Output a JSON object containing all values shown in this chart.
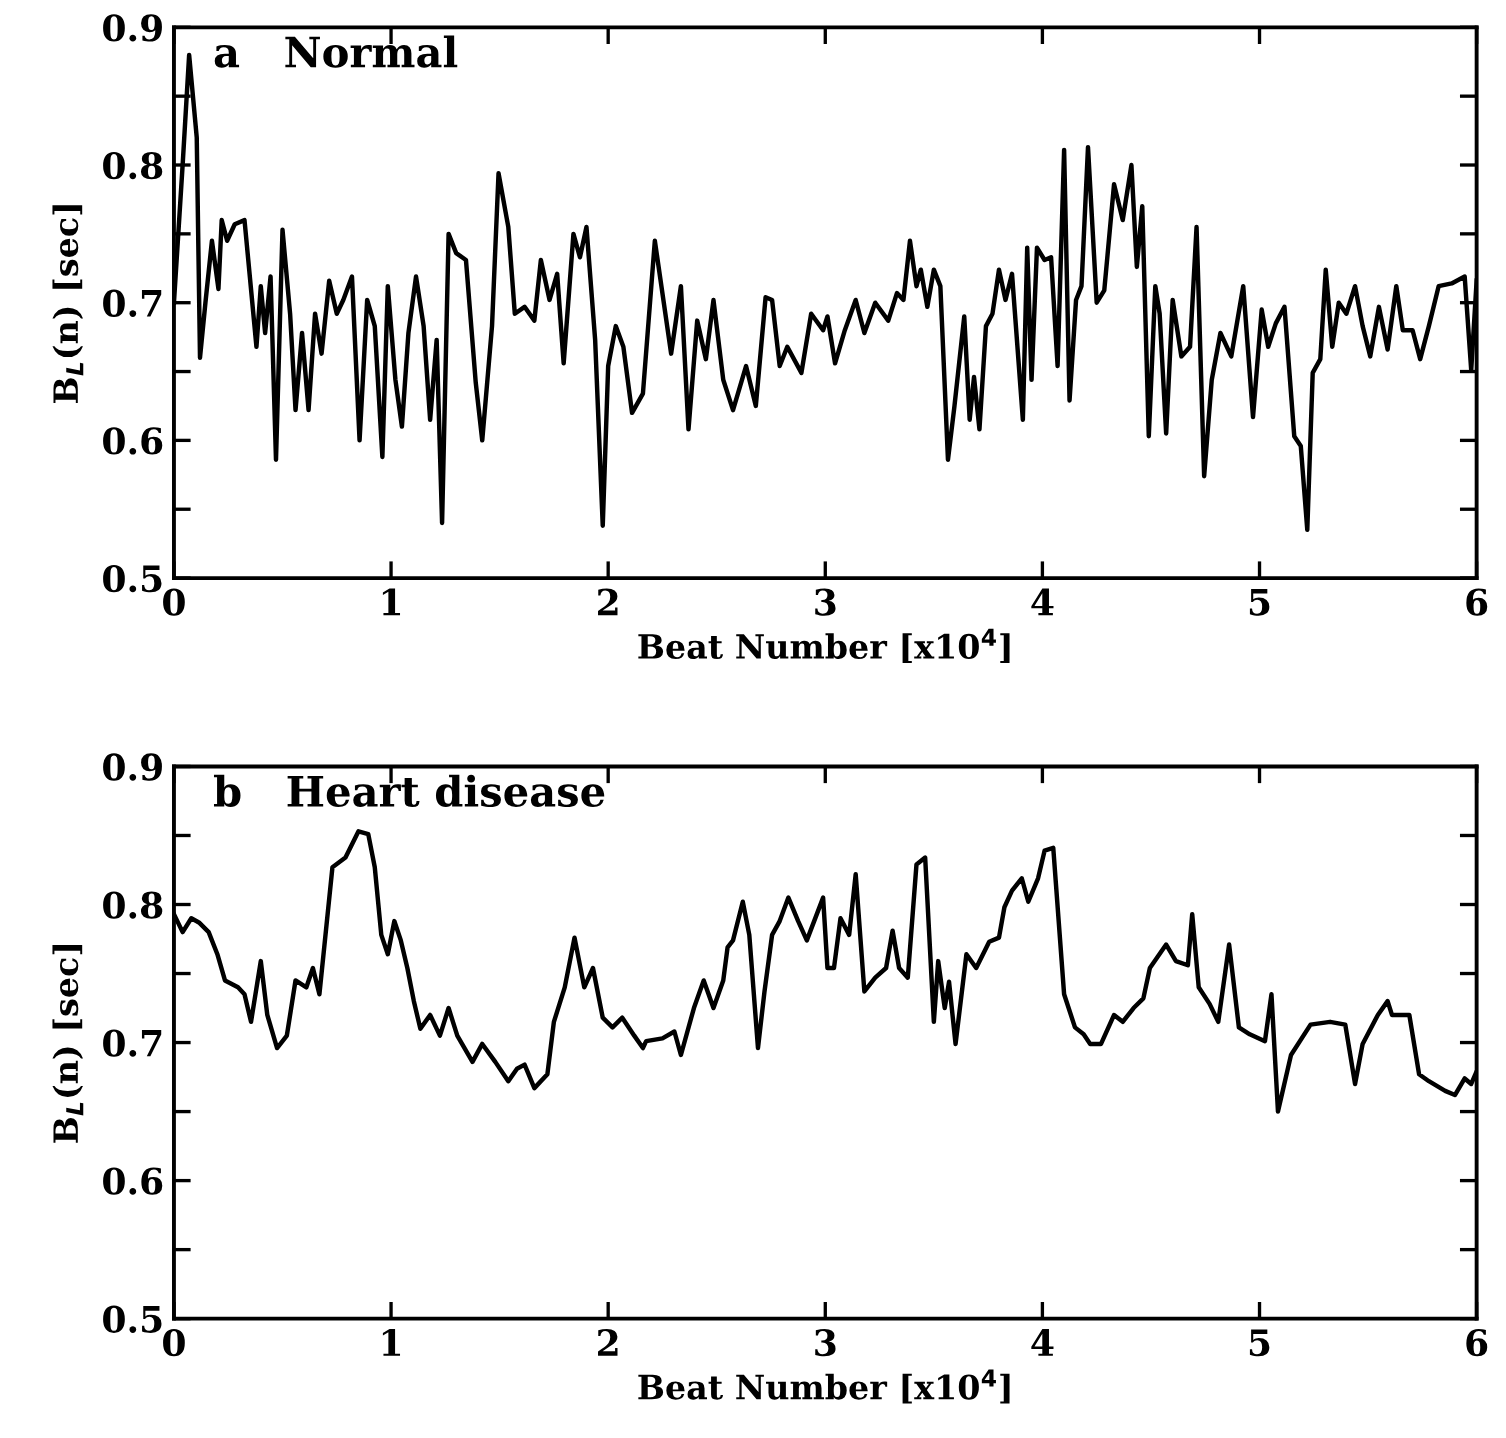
{
  "chart_data": [
    {
      "type": "line",
      "title": "a   Normal",
      "xlabel": "Beat Number [x10$^{4}$]",
      "ylabel": "B$_{L}$(n) [sec]",
      "xlim": [
        0,
        6
      ],
      "ylim": [
        0.5,
        0.9
      ],
      "xticks": [
        0,
        1,
        2,
        3,
        4,
        5,
        6
      ],
      "yticks": [
        0.5,
        {
          "value": 0.55,
          "label": null
        },
        0.6,
        {
          "value": 0.65,
          "label": null
        },
        0.7,
        {
          "value": 0.75,
          "label": null
        },
        0.8,
        {
          "value": 0.85,
          "label": null
        },
        0.9
      ],
      "series": [
        {
          "color": "#000000",
          "x": [
            0,
            0.02,
            0.04,
            0.07,
            0.105,
            0.12,
            0.145,
            0.175,
            0.205,
            0.22,
            0.245,
            0.28,
            0.325,
            0.38,
            0.4,
            0.42,
            0.445,
            0.47,
            0.5,
            0.535,
            0.56,
            0.59,
            0.62,
            0.65,
            0.68,
            0.715,
            0.75,
            0.78,
            0.82,
            0.855,
            0.89,
            0.925,
            0.96,
            0.985,
            1.02,
            1.05,
            1.08,
            1.115,
            1.15,
            1.18,
            1.21,
            1.235,
            1.265,
            1.3,
            1.345,
            1.39,
            1.42,
            1.465,
            1.495,
            1.54,
            1.57,
            1.615,
            1.66,
            1.69,
            1.73,
            1.765,
            1.795,
            1.84,
            1.87,
            1.9,
            1.94,
            1.975,
            2.0,
            2.035,
            2.07,
            2.11,
            2.16,
            2.215,
            2.29,
            2.335,
            2.37,
            2.41,
            2.45,
            2.485,
            2.53,
            2.575,
            2.635,
            2.68,
            2.725,
            2.755,
            2.79,
            2.825,
            2.89,
            2.935,
            2.99,
            3.01,
            3.045,
            3.09,
            3.14,
            3.18,
            3.23,
            3.29,
            3.33,
            3.36,
            3.39,
            3.42,
            3.44,
            3.47,
            3.5,
            3.53,
            3.565,
            3.595,
            3.64,
            3.665,
            3.685,
            3.71,
            3.74,
            3.77,
            3.8,
            3.83,
            3.86,
            3.91,
            3.93,
            3.95,
            3.975,
            4.01,
            4.04,
            4.07,
            4.1,
            4.125,
            4.155,
            4.18,
            4.21,
            4.25,
            4.285,
            4.33,
            4.37,
            4.41,
            4.435,
            4.46,
            4.49,
            4.52,
            4.54,
            4.57,
            4.6,
            4.64,
            4.68,
            4.71,
            4.745,
            4.78,
            4.82,
            4.87,
            4.925,
            4.97,
            5.01,
            5.04,
            5.075,
            5.115,
            5.16,
            5.19,
            5.22,
            5.245,
            5.28,
            5.305,
            5.335,
            5.365,
            5.4,
            5.44,
            5.475,
            5.51,
            5.55,
            5.59,
            5.63,
            5.66,
            5.705,
            5.74,
            5.78,
            5.825,
            5.885,
            5.945,
            5.975,
            6.0
          ],
          "values": [
            0.7,
            0.75,
            0.8,
            0.88,
            0.82,
            0.66,
            0.7,
            0.745,
            0.71,
            0.76,
            0.745,
            0.757,
            0.76,
            0.668,
            0.712,
            0.678,
            0.719,
            0.586,
            0.753,
            0.692,
            0.622,
            0.678,
            0.622,
            0.692,
            0.663,
            0.716,
            0.692,
            0.702,
            0.719,
            0.6,
            0.702,
            0.683,
            0.588,
            0.712,
            0.644,
            0.61,
            0.678,
            0.719,
            0.683,
            0.615,
            0.673,
            0.54,
            0.75,
            0.736,
            0.731,
            0.642,
            0.6,
            0.683,
            0.794,
            0.755,
            0.692,
            0.697,
            0.687,
            0.731,
            0.702,
            0.721,
            0.656,
            0.75,
            0.733,
            0.755,
            0.673,
            0.538,
            0.654,
            0.683,
            0.668,
            0.62,
            0.634,
            0.745,
            0.663,
            0.712,
            0.608,
            0.687,
            0.659,
            0.702,
            0.644,
            0.622,
            0.654,
            0.625,
            0.704,
            0.702,
            0.654,
            0.668,
            0.649,
            0.692,
            0.68,
            0.69,
            0.656,
            0.68,
            0.702,
            0.678,
            0.7,
            0.687,
            0.707,
            0.702,
            0.745,
            0.712,
            0.724,
            0.697,
            0.724,
            0.712,
            0.586,
            0.625,
            0.69,
            0.615,
            0.646,
            0.608,
            0.683,
            0.692,
            0.724,
            0.702,
            0.721,
            0.615,
            0.74,
            0.644,
            0.74,
            0.731,
            0.733,
            0.654,
            0.811,
            0.629,
            0.702,
            0.712,
            0.813,
            0.7,
            0.709,
            0.786,
            0.76,
            0.8,
            0.726,
            0.77,
            0.603,
            0.712,
            0.692,
            0.605,
            0.702,
            0.661,
            0.668,
            0.755,
            0.574,
            0.644,
            0.678,
            0.661,
            0.712,
            0.617,
            0.695,
            0.668,
            0.685,
            0.697,
            0.603,
            0.596,
            0.535,
            0.649,
            0.659,
            0.724,
            0.668,
            0.7,
            0.692,
            0.712,
            0.683,
            0.661,
            0.697,
            0.666,
            0.712,
            0.68,
            0.68,
            0.659,
            0.683,
            0.712,
            0.714,
            0.719,
            0.651,
            0.716
          ]
        }
      ]
    },
    {
      "type": "line",
      "title": "b   Heart disease",
      "xlabel": "Beat Number [x10$^{4}$]",
      "ylabel": "B$_{L}$(n) [sec]",
      "xlim": [
        0,
        6
      ],
      "ylim": [
        0.5,
        0.9
      ],
      "xticks": [
        0,
        1,
        2,
        3,
        4,
        5,
        6
      ],
      "yticks": [
        0.5,
        {
          "value": 0.55,
          "label": null
        },
        0.6,
        {
          "value": 0.65,
          "label": null
        },
        0.7,
        {
          "value": 0.75,
          "label": null
        },
        0.8,
        {
          "value": 0.85,
          "label": null
        },
        0.9
      ],
      "series": [
        {
          "color": "#000000",
          "x": [
            0,
            0.04,
            0.08,
            0.115,
            0.16,
            0.2,
            0.235,
            0.295,
            0.325,
            0.355,
            0.4,
            0.43,
            0.475,
            0.52,
            0.56,
            0.61,
            0.64,
            0.67,
            0.73,
            0.79,
            0.85,
            0.895,
            0.925,
            0.955,
            0.985,
            1.015,
            1.045,
            1.075,
            1.105,
            1.135,
            1.18,
            1.225,
            1.265,
            1.305,
            1.375,
            1.42,
            1.48,
            1.54,
            1.58,
            1.615,
            1.66,
            1.72,
            1.75,
            1.8,
            1.845,
            1.89,
            1.93,
            1.975,
            2.02,
            2.065,
            2.12,
            2.16,
            2.175,
            2.25,
            2.305,
            2.335,
            2.395,
            2.44,
            2.485,
            2.53,
            2.55,
            2.575,
            2.62,
            2.65,
            2.69,
            2.72,
            2.755,
            2.79,
            2.83,
            2.875,
            2.915,
            2.99,
            3.01,
            3.04,
            3.07,
            3.11,
            3.14,
            3.18,
            3.23,
            3.28,
            3.31,
            3.34,
            3.38,
            3.42,
            3.46,
            3.5,
            3.52,
            3.55,
            3.57,
            3.6,
            3.65,
            3.695,
            3.755,
            3.8,
            3.825,
            3.86,
            3.905,
            3.935,
            3.98,
            4.01,
            4.05,
            4.1,
            4.15,
            4.19,
            4.22,
            4.27,
            4.33,
            4.37,
            4.42,
            4.465,
            4.495,
            4.57,
            4.615,
            4.67,
            4.69,
            4.72,
            4.77,
            4.81,
            4.86,
            4.905,
            4.955,
            5.025,
            5.055,
            5.085,
            5.145,
            5.235,
            5.325,
            5.395,
            5.44,
            5.475,
            5.545,
            5.59,
            5.61,
            5.69,
            5.735,
            5.78,
            5.855,
            5.9,
            5.945,
            5.975,
            6.0
          ],
          "values": [
            0.793,
            0.78,
            0.79,
            0.787,
            0.78,
            0.764,
            0.745,
            0.74,
            0.735,
            0.715,
            0.759,
            0.72,
            0.696,
            0.705,
            0.745,
            0.74,
            0.754,
            0.735,
            0.827,
            0.834,
            0.853,
            0.851,
            0.827,
            0.778,
            0.764,
            0.788,
            0.774,
            0.754,
            0.73,
            0.71,
            0.72,
            0.705,
            0.725,
            0.705,
            0.686,
            0.699,
            0.686,
            0.672,
            0.681,
            0.684,
            0.667,
            0.677,
            0.715,
            0.74,
            0.776,
            0.74,
            0.754,
            0.718,
            0.711,
            0.718,
            0.705,
            0.696,
            0.701,
            0.703,
            0.708,
            0.691,
            0.725,
            0.745,
            0.725,
            0.745,
            0.769,
            0.774,
            0.802,
            0.778,
            0.696,
            0.737,
            0.778,
            0.788,
            0.805,
            0.788,
            0.774,
            0.805,
            0.754,
            0.754,
            0.79,
            0.778,
            0.822,
            0.737,
            0.747,
            0.754,
            0.781,
            0.754,
            0.747,
            0.829,
            0.834,
            0.715,
            0.759,
            0.725,
            0.744,
            0.699,
            0.764,
            0.754,
            0.773,
            0.776,
            0.798,
            0.81,
            0.819,
            0.802,
            0.819,
            0.839,
            0.841,
            0.735,
            0.711,
            0.706,
            0.699,
            0.699,
            0.72,
            0.715,
            0.725,
            0.732,
            0.754,
            0.771,
            0.759,
            0.756,
            0.793,
            0.74,
            0.728,
            0.715,
            0.771,
            0.711,
            0.706,
            0.701,
            0.735,
            0.65,
            0.691,
            0.713,
            0.715,
            0.713,
            0.67,
            0.699,
            0.72,
            0.73,
            0.72,
            0.72,
            0.677,
            0.672,
            0.665,
            0.662,
            0.674,
            0.67,
            0.679
          ]
        }
      ]
    }
  ]
}
